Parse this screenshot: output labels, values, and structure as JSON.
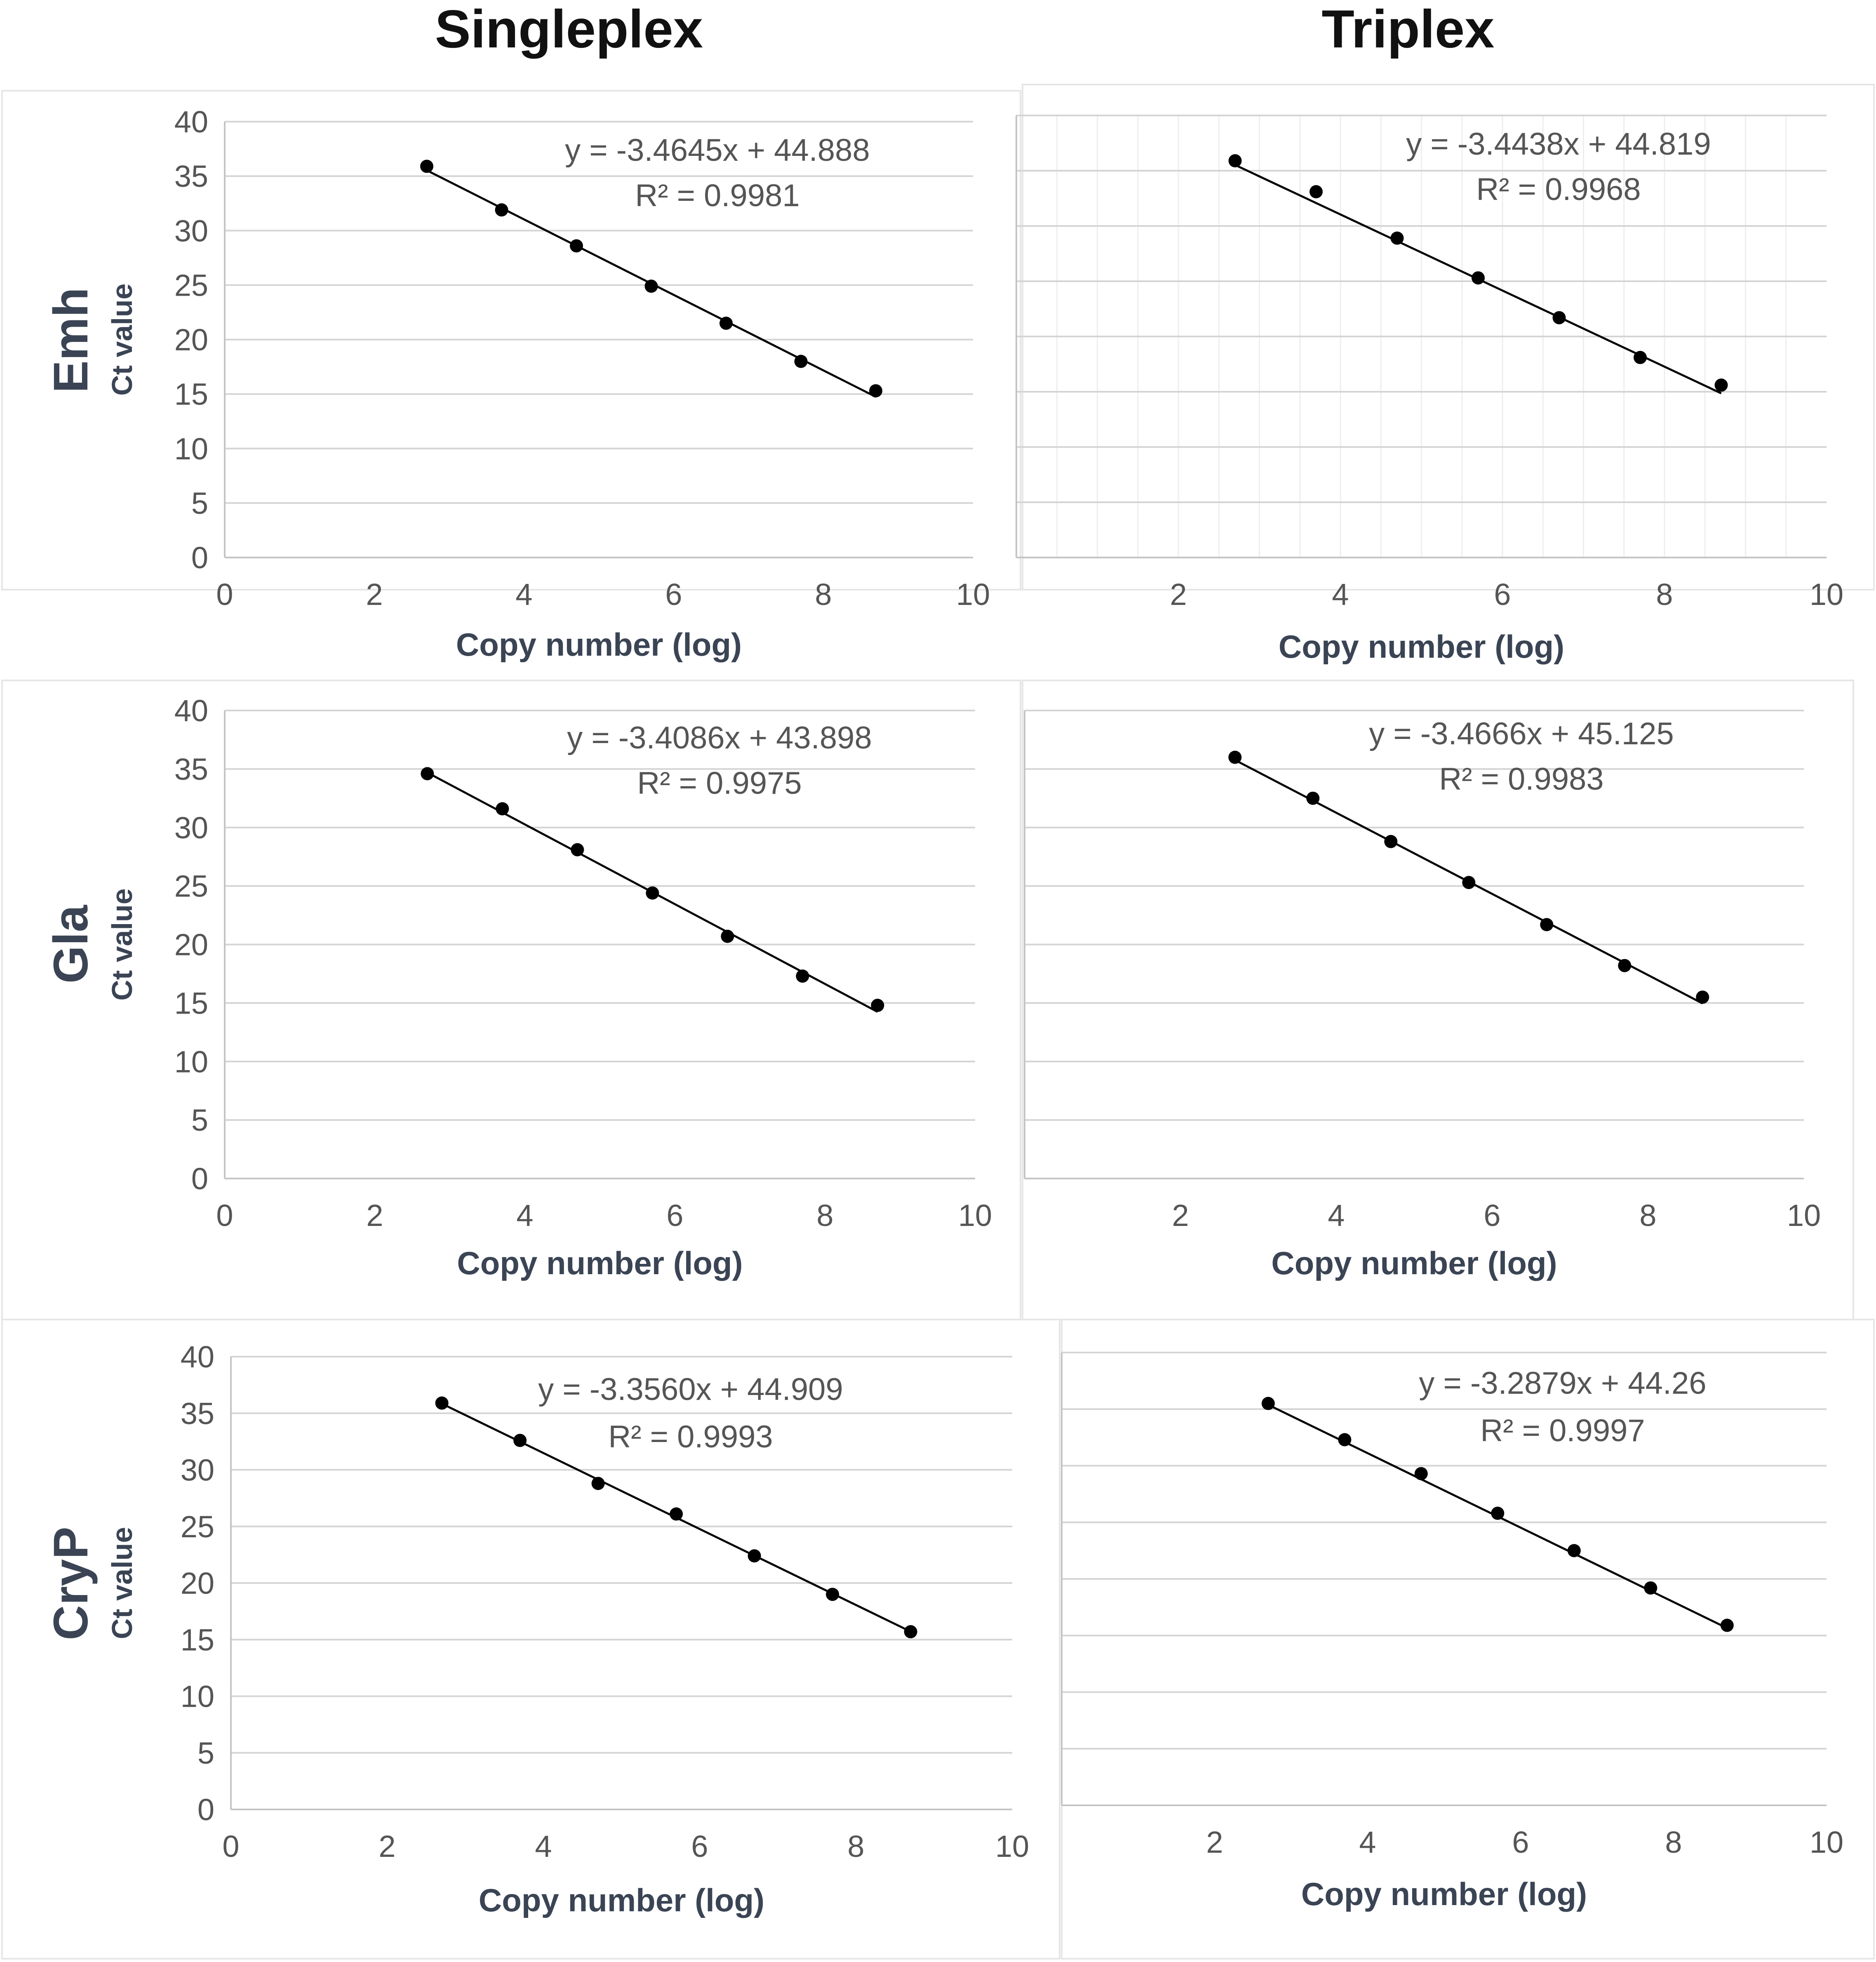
{
  "column_titles": [
    "Singleplex",
    "Triplex"
  ],
  "row_labels": [
    "Emh",
    "Gla",
    "CryP"
  ],
  "chart_data": [
    {
      "type": "scatter",
      "row": "Emh",
      "column": "Singleplex",
      "title": "",
      "xlabel": "Copy number (log)",
      "ylabel": "Ct value",
      "xlim": [
        0,
        10
      ],
      "ylim": [
        0,
        40
      ],
      "xticks": [
        "0",
        "2",
        "4",
        "6",
        "8",
        "10"
      ],
      "yticks": [
        "0",
        "5",
        "10",
        "15",
        "20",
        "25",
        "30",
        "35",
        "40"
      ],
      "x": [
        2.7,
        3.7,
        4.7,
        5.7,
        6.7,
        7.7,
        8.7
      ],
      "y": [
        35.9,
        31.9,
        28.6,
        24.9,
        21.5,
        18.0,
        15.3
      ],
      "trendline": {
        "slope": -3.4645,
        "intercept": 44.888
      },
      "equation": "y = -3.4645x + 44.888",
      "r2": "R² = 0.9981",
      "grid": true
    },
    {
      "type": "scatter",
      "row": "Emh",
      "column": "Triplex",
      "title": "",
      "xlabel": "Copy number (log)",
      "ylabel": "",
      "xlim": [
        0,
        10
      ],
      "ylim": [
        0,
        40
      ],
      "xticks": [
        "2",
        "4",
        "6",
        "8",
        "10"
      ],
      "yticks": [],
      "x": [
        2.7,
        3.7,
        4.7,
        5.7,
        6.7,
        7.7,
        8.7
      ],
      "y": [
        35.9,
        33.1,
        28.9,
        25.3,
        21.7,
        18.1,
        15.6
      ],
      "trendline": {
        "slope": -3.4438,
        "intercept": 44.819
      },
      "equation": "y = -3.4438x + 44.819",
      "r2": "R² = 0.9968",
      "grid": true,
      "minor_grid": true
    },
    {
      "type": "scatter",
      "row": "Gla",
      "column": "Singleplex",
      "title": "",
      "xlabel": "Copy number (log)",
      "ylabel": "Ct value",
      "xlim": [
        0,
        10
      ],
      "ylim": [
        0,
        40
      ],
      "xticks": [
        "0",
        "2",
        "4",
        "6",
        "8",
        "10"
      ],
      "yticks": [
        "0",
        "5",
        "10",
        "15",
        "20",
        "25",
        "30",
        "35",
        "40"
      ],
      "x": [
        2.7,
        3.7,
        4.7,
        5.7,
        6.7,
        7.7,
        8.7
      ],
      "y": [
        34.6,
        31.6,
        28.1,
        24.4,
        20.7,
        17.3,
        14.8
      ],
      "trendline": {
        "slope": -3.4086,
        "intercept": 43.898
      },
      "equation": "y = -3.4086x + 43.898",
      "r2": "R² = 0.9975",
      "grid": true
    },
    {
      "type": "scatter",
      "row": "Gla",
      "column": "Triplex",
      "title": "",
      "xlabel": "Copy number (log)",
      "ylabel": "",
      "xlim": [
        0,
        10
      ],
      "ylim": [
        0,
        40
      ],
      "xticks": [
        "2",
        "4",
        "6",
        "8",
        "10"
      ],
      "yticks": [],
      "x": [
        2.7,
        3.7,
        4.7,
        5.7,
        6.7,
        7.7,
        8.7
      ],
      "y": [
        36.0,
        32.5,
        28.8,
        25.3,
        21.7,
        18.2,
        15.5
      ],
      "trendline": {
        "slope": -3.4666,
        "intercept": 45.125
      },
      "equation": "y = -3.4666x + 45.125",
      "r2": "R² = 0.9983",
      "grid": true
    },
    {
      "type": "scatter",
      "row": "CryP",
      "column": "Singleplex",
      "title": "",
      "xlabel": "Copy number (log)",
      "ylabel": "Ct value",
      "xlim": [
        0,
        10
      ],
      "ylim": [
        0,
        40
      ],
      "xticks": [
        "0",
        "2",
        "4",
        "6",
        "8",
        "10"
      ],
      "yticks": [
        "0",
        "5",
        "10",
        "15",
        "20",
        "25",
        "30",
        "35",
        "40"
      ],
      "x": [
        2.7,
        3.7,
        4.7,
        5.7,
        6.7,
        7.7,
        8.7
      ],
      "y": [
        35.9,
        32.6,
        28.8,
        26.1,
        22.4,
        19.0,
        15.7
      ],
      "trendline": {
        "slope": -3.356,
        "intercept": 44.909
      },
      "equation": "y = -3.3560x + 44.909",
      "r2": "R² = 0.9993",
      "grid": true
    },
    {
      "type": "scatter",
      "row": "CryP",
      "column": "Triplex",
      "title": "",
      "xlabel": "Copy number (log)",
      "ylabel": "",
      "xlim": [
        0,
        10
      ],
      "ylim": [
        0,
        40
      ],
      "xticks": [
        "2",
        "4",
        "6",
        "8",
        "10"
      ],
      "yticks": [],
      "x": [
        2.7,
        3.7,
        4.7,
        5.7,
        6.7,
        7.7,
        8.7
      ],
      "y": [
        35.5,
        32.3,
        29.3,
        25.8,
        22.5,
        19.2,
        15.9
      ],
      "trendline": {
        "slope": -3.2879,
        "intercept": 44.26
      },
      "equation": "y = -3.2879x + 44.26",
      "r2": "R² = 0.9997",
      "grid": true
    }
  ]
}
